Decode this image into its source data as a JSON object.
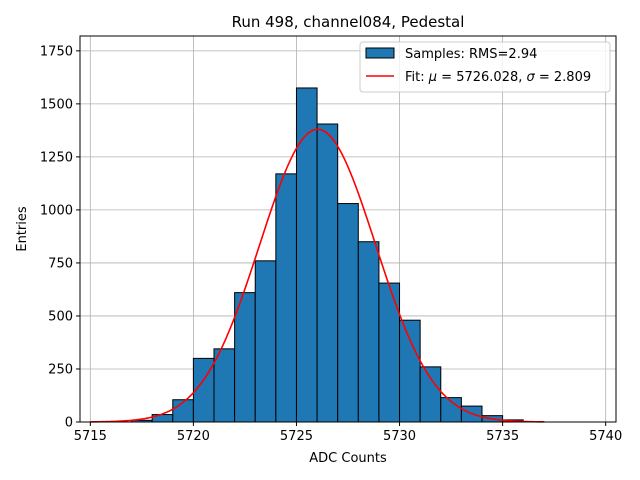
{
  "chart_data": {
    "type": "bar",
    "title": "Run 498, channel084, Pedestal",
    "xlabel": "ADC Counts",
    "ylabel": "Entries",
    "xlim": [
      5714.5,
      5740.5
    ],
    "ylim": [
      0,
      1820
    ],
    "xticks": [
      5715,
      5720,
      5725,
      5730,
      5735,
      5740
    ],
    "yticks": [
      0,
      250,
      500,
      750,
      1000,
      1250,
      1500,
      1750
    ],
    "grid": true,
    "legend_position": "top-right",
    "colors": {
      "bar": "#1f77b4",
      "bar_edge": "#000000",
      "fit": "#ff0000",
      "grid": "#b0b0b0"
    },
    "histogram": {
      "name": "Samples: RMS=2.94",
      "bin_edges": [
        5717,
        5718,
        5719,
        5720,
        5721,
        5722,
        5723,
        5724,
        5725,
        5726,
        5727,
        5728,
        5729,
        5730,
        5731,
        5732,
        5733,
        5734,
        5735,
        5736,
        5737
      ],
      "counts": [
        8,
        35,
        105,
        300,
        345,
        610,
        760,
        1170,
        1575,
        1405,
        1030,
        850,
        655,
        480,
        260,
        115,
        75,
        30,
        10,
        2
      ]
    },
    "fit": {
      "name_text": "Fit: ",
      "mu_symbol": "μ",
      "mu_text": " = 5726.028, ",
      "sigma_symbol": "σ",
      "sigma_text": " = 2.809",
      "mu": 5726.028,
      "sigma": 2.809,
      "amplitude": 1380,
      "x_range": [
        5715,
        5737
      ]
    }
  }
}
